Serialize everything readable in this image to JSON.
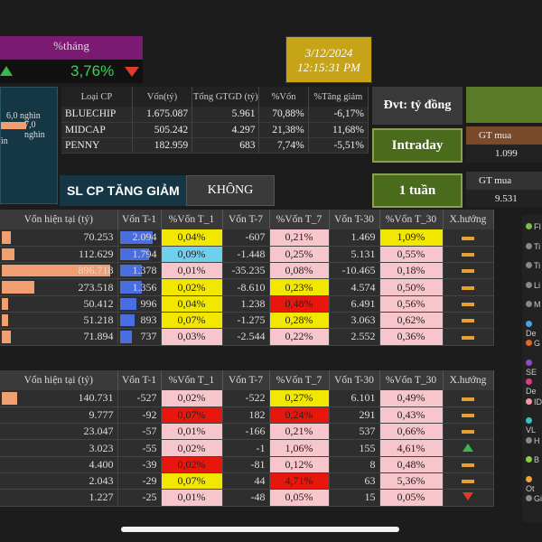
{
  "pct_thang": {
    "label": "%tháng",
    "value": "3,76%"
  },
  "datetime": {
    "date": "3/12/2024",
    "time": "12:15:31 PM"
  },
  "left_panel": {
    "line1": "6,0 nghìn",
    "line2": "7,0 nghìn",
    "line3": "ìn"
  },
  "cp_table": {
    "headers": [
      "Loại CP",
      "Vốn(tỷ)",
      "Tổng GTGD (tỷ)",
      "%Vốn",
      "%Tăng giảm"
    ],
    "rows": [
      [
        "BLUECHIP",
        "1.675.087",
        "5.961",
        "70,88%",
        "-6,17%"
      ],
      [
        "MIDCAP",
        "505.242",
        "4.297",
        "21,38%",
        "11,68%"
      ],
      [
        "PENNY",
        "182.959",
        "683",
        "7,74%",
        "-5,51%"
      ]
    ]
  },
  "dvt": "Đvt: tỷ đồng",
  "buttons": {
    "intraday": "Intraday",
    "tuan": "1 tuần",
    "slcp": "SL CP TĂNG GIẢM",
    "khong": "KHÔNG"
  },
  "gt_mua": [
    {
      "label": "GT mua",
      "value": "1.099"
    },
    {
      "label": "GT mua",
      "value": "9.531"
    }
  ],
  "main_headers": [
    "Vốn hiện tại (tỷ)",
    "Vốn T-1",
    "%Vốn T_1",
    "Vốn T-7",
    "%Vốn T_7",
    "Vốn T-30",
    "%Vốn T_30",
    "X.hướng"
  ],
  "table1": [
    {
      "von": "70.253",
      "vonbar": 0.08,
      "t1": "2.094",
      "t1bar": 0.9,
      "p1": "0,04%",
      "p1c": "yellow",
      "t7": "-607",
      "p7": "0,21%",
      "p7c": "pink",
      "t30": "1.469",
      "p30": "1,09%",
      "p30c": "yellow",
      "dir": "dash"
    },
    {
      "von": "112.629",
      "vonbar": 0.12,
      "t1": "1.794",
      "t1bar": 0.8,
      "p1": "0,09%",
      "p1c": "blue",
      "t7": "-1.448",
      "p7": "0,25%",
      "p7c": "pink",
      "t30": "5.131",
      "p30": "0,55%",
      "p30c": "pink",
      "dir": "dash"
    },
    {
      "von": "896.718",
      "vonbar": 1.0,
      "t1": "1.378",
      "t1bar": 0.6,
      "p1": "0,01%",
      "p1c": "pink",
      "t7": "-35.235",
      "p7": "0,08%",
      "p7c": "pink",
      "t30": "-10.465",
      "p30": "0,18%",
      "p30c": "pink",
      "dir": "dash"
    },
    {
      "von": "273.518",
      "vonbar": 0.3,
      "t1": "1.356",
      "t1bar": 0.6,
      "p1": "0,02%",
      "p1c": "yellow",
      "t7": "-8.610",
      "p7": "0,23%",
      "p7c": "yellow",
      "t30": "4.574",
      "p30": "0,50%",
      "p30c": "pink",
      "dir": "dash"
    },
    {
      "von": "50.412",
      "vonbar": 0.06,
      "t1": "996",
      "t1bar": 0.45,
      "p1": "0,04%",
      "p1c": "yellow",
      "t7": "1.238",
      "p7": "0,48%",
      "p7c": "red",
      "t30": "6.491",
      "p30": "0,56%",
      "p30c": "pink",
      "dir": "dash"
    },
    {
      "von": "51.218",
      "vonbar": 0.06,
      "t1": "893",
      "t1bar": 0.4,
      "p1": "0,07%",
      "p1c": "yellow",
      "t7": "-1.275",
      "p7": "0,28%",
      "p7c": "yellow",
      "t30": "3.063",
      "p30": "0,62%",
      "p30c": "pink",
      "dir": "dash"
    },
    {
      "von": "71.894",
      "vonbar": 0.08,
      "t1": "737",
      "t1bar": 0.33,
      "p1": "0,03%",
      "p1c": "pink",
      "t7": "-2.544",
      "p7": "0,22%",
      "p7c": "pink",
      "t30": "2.552",
      "p30": "0,36%",
      "p30c": "pink",
      "dir": "dash"
    }
  ],
  "table2": [
    {
      "von": "140.731",
      "vonbar": 0.14,
      "t1": "-527",
      "p1": "0,02%",
      "p1c": "pink",
      "t7": "-522",
      "p7": "0,27%",
      "p7c": "yellow",
      "t30": "6.101",
      "p30": "0,49%",
      "p30c": "pink",
      "dir": "dash"
    },
    {
      "von": "9.777",
      "vonbar": 0.0,
      "t1": "-92",
      "p1": "0,07%",
      "p1c": "red",
      "t7": "182",
      "p7": "0,24%",
      "p7c": "red",
      "t30": "291",
      "p30": "0,43%",
      "p30c": "pink",
      "dir": "dash"
    },
    {
      "von": "23.047",
      "vonbar": 0.0,
      "t1": "-57",
      "p1": "0,01%",
      "p1c": "pink",
      "t7": "-166",
      "p7": "0,21%",
      "p7c": "pink",
      "t30": "537",
      "p30": "0,66%",
      "p30c": "pink",
      "dir": "dash"
    },
    {
      "von": "3.023",
      "vonbar": 0.0,
      "t1": "-55",
      "p1": "0,02%",
      "p1c": "pink",
      "t7": "-1",
      "p7": "1,06%",
      "p7c": "pink",
      "t30": "155",
      "p30": "4,61%",
      "p30c": "pink",
      "dir": "up"
    },
    {
      "von": "4.400",
      "vonbar": 0.0,
      "t1": "-39",
      "p1": "0,02%",
      "p1c": "red",
      "t7": "-81",
      "p7": "0,12%",
      "p7c": "pink",
      "t30": "8",
      "p30": "0,48%",
      "p30c": "pink",
      "dir": "dash"
    },
    {
      "von": "2.043",
      "vonbar": 0.0,
      "t1": "-29",
      "p1": "0,07%",
      "p1c": "yellow",
      "t7": "44",
      "p7": "4,71%",
      "p7c": "red",
      "t30": "63",
      "p30": "5,36%",
      "p30c": "pink",
      "dir": "dash"
    },
    {
      "von": "1.227",
      "vonbar": 0.0,
      "t1": "-25",
      "p1": "0,01%",
      "p1c": "pink",
      "t7": "-48",
      "p7": "0,05%",
      "p7c": "pink",
      "t30": "15",
      "p30": "0,05%",
      "p30c": "pink",
      "dir": "down"
    }
  ],
  "legend": [
    {
      "label": "FI",
      "color": "#7fbf3f"
    },
    {
      "label": "Ti",
      "color": "#888888"
    },
    {
      "label": "Ti",
      "color": "#888888"
    },
    {
      "label": "Li",
      "color": "#888888"
    },
    {
      "label": "M",
      "color": "#888888"
    },
    {
      "label": "De",
      "color": "#3fa7e0"
    },
    {
      "label": "G",
      "color": "#e06a2a"
    },
    {
      "label": "SE",
      "color": "#8a4fbf"
    },
    {
      "label": "De",
      "color": "#e03a8a"
    },
    {
      "label": "ID",
      "color": "#f29aa8"
    },
    {
      "label": "VL",
      "color": "#3fbfbf"
    },
    {
      "label": "H",
      "color": "#888888"
    },
    {
      "label": "B",
      "color": "#8ad13f"
    },
    {
      "label": "Ot",
      "color": "#f2a23a"
    },
    {
      "label": "Gi",
      "color": "#888888"
    }
  ]
}
